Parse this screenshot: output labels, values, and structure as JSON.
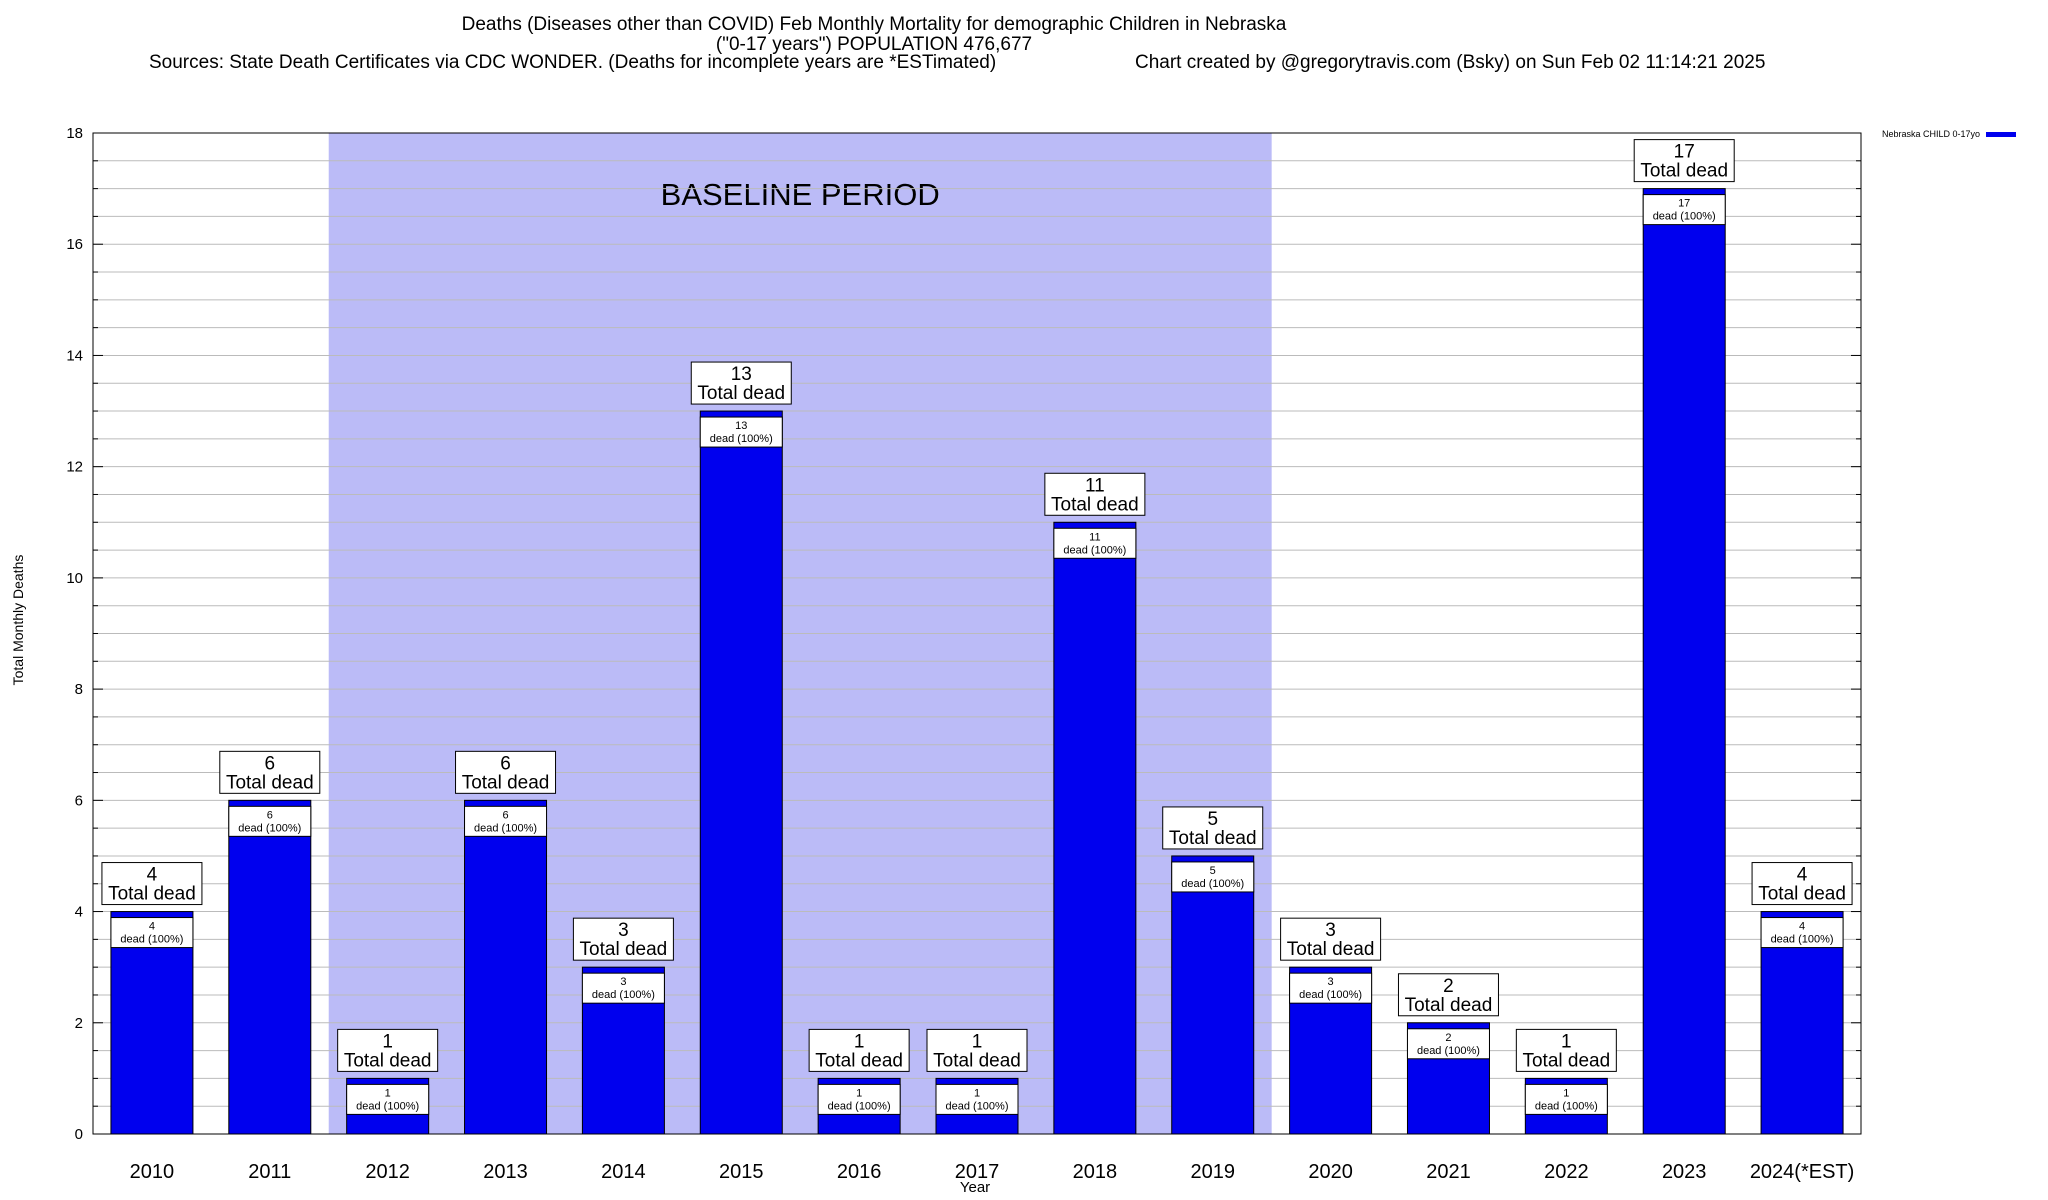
{
  "chart_data": {
    "type": "bar",
    "title": "Deaths (Diseases other than COVID) Feb Monthly Mortality for demographic Children in Nebraska",
    "subtitle": "(\"0-17 years\") POPULATION 476,677",
    "source": "Sources: State Death Certificates via CDC WONDER. (Deaths for incomplete years are *ESTimated)",
    "credit": "Chart created by @gregorytravis.com (Bsky) on Sun Feb 02 11:14:21 2025",
    "xlabel": "Year",
    "ylabel": "Total Monthly Deaths",
    "ylim": [
      0,
      18
    ],
    "yticks": [
      0,
      2,
      4,
      6,
      8,
      10,
      12,
      14,
      16,
      18
    ],
    "grid": true,
    "legend_position": "top-right",
    "categories": [
      "2010",
      "2011",
      "2012",
      "2013",
      "2014",
      "2015",
      "2016",
      "2017",
      "2018",
      "2019",
      "2020",
      "2021",
      "2022",
      "2023",
      "2024(*EST)"
    ],
    "series": [
      {
        "name": "Nebraska CHILD 0-17yo",
        "color": "#0000ee",
        "values": [
          4,
          6,
          1,
          6,
          3,
          13,
          1,
          1,
          11,
          5,
          3,
          2,
          1,
          17,
          4
        ]
      }
    ],
    "total_label_text": "Total dead",
    "inner_label_text": "dead (100%)",
    "baseline": {
      "label": "BASELINE PERIOD",
      "from": "2012",
      "to": "2019",
      "color": "#bbbbf7"
    }
  }
}
